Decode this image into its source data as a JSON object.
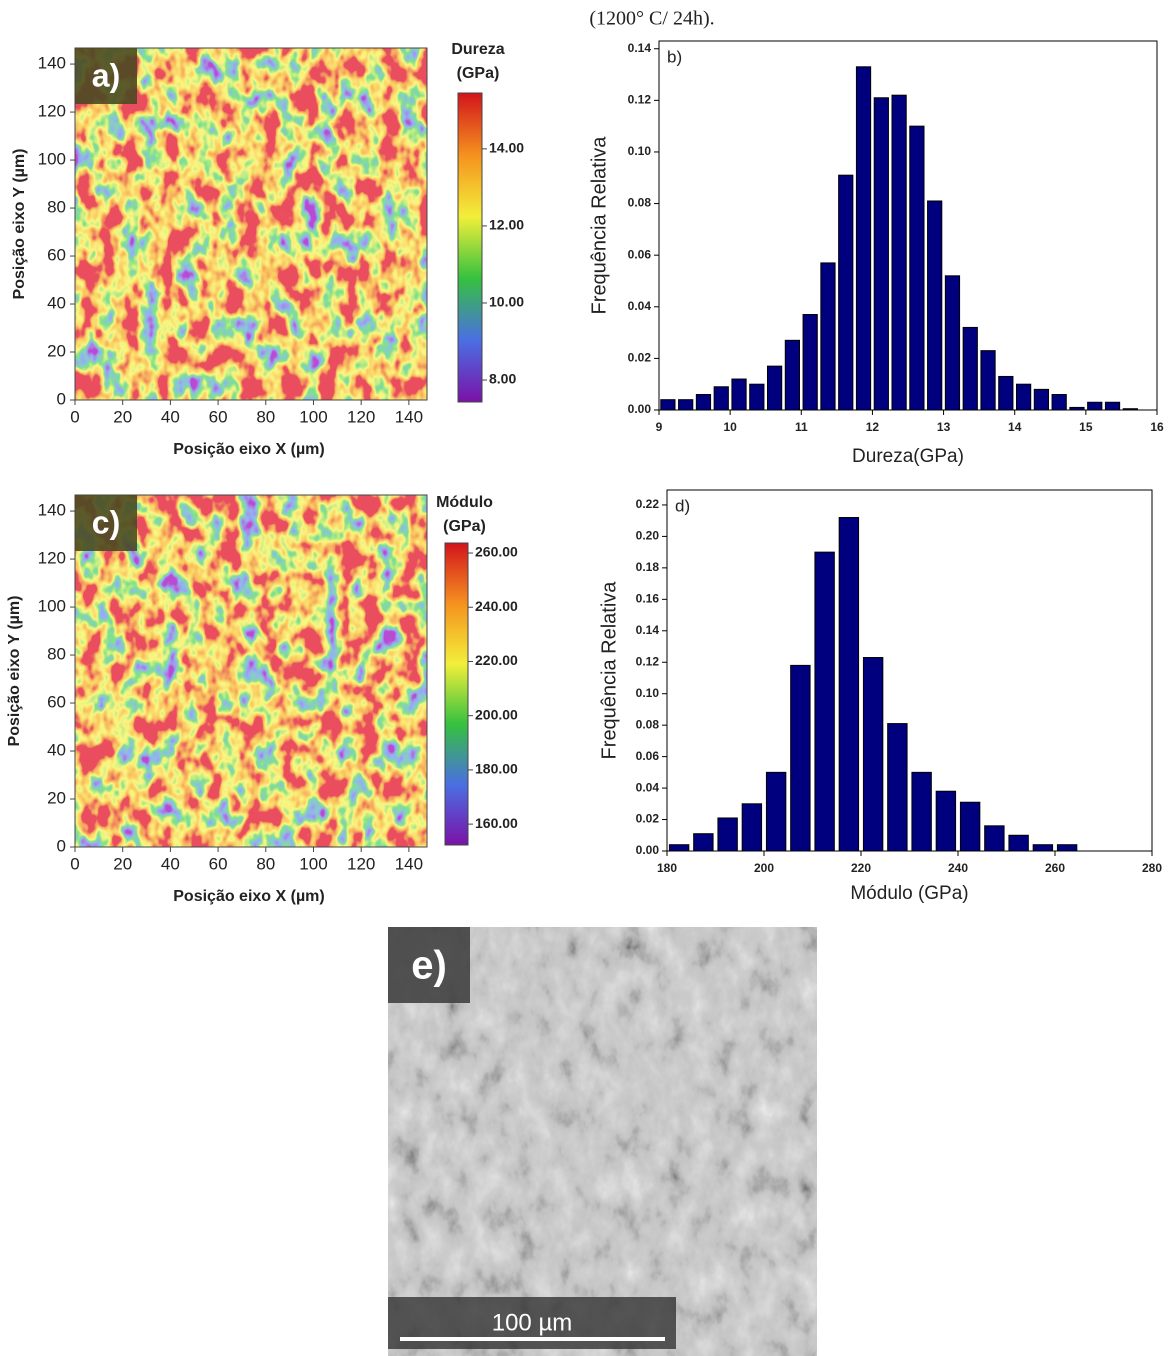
{
  "caption": "(1200° C/ 24h).",
  "chart_data": [
    {
      "type": "heatmap",
      "label": "a)",
      "xlabel": "Posição eixo X (µm)",
      "ylabel": "Posição eixo Y (µm)",
      "xlim": [
        0,
        147.6
      ],
      "ylim": [
        0,
        146.7
      ],
      "xticks": [
        0,
        20,
        40,
        60,
        80,
        100,
        120,
        140
      ],
      "yticks": [
        0,
        20,
        40,
        60,
        80,
        100,
        120,
        140
      ],
      "colorbar_title": [
        "Dureza",
        "(GPa)"
      ],
      "clim": [
        7.43,
        15.45
      ],
      "cticks": [
        {
          "value": 8,
          "label": "8.00"
        },
        {
          "value": 10,
          "label": "10.00"
        },
        {
          "value": 12,
          "label": "12.00"
        },
        {
          "value": 14,
          "label": "14.00"
        }
      ],
      "colormap": [
        "#7a12a8",
        "#4a6fe3",
        "#35c13f",
        "#f2ef3a",
        "#f5911e",
        "#d2141c"
      ]
    },
    {
      "type": "histogram",
      "label": "b)",
      "xlabel": "Dureza(GPa)",
      "ylabel": "Frequência Relativa",
      "color": "#00007f",
      "bins": [
        9,
        9.25,
        9.5,
        9.75,
        10,
        10.25,
        10.5,
        10.75,
        11,
        11.25,
        11.5,
        11.75,
        12,
        12.25,
        12.5,
        12.75,
        13,
        13.25,
        13.5,
        13.75,
        14,
        14.25,
        14.5,
        14.75,
        15,
        15.25,
        15.5,
        15.75
      ],
      "values": [
        0.004,
        0.004,
        0.006,
        0.009,
        0.012,
        0.01,
        0.017,
        0.027,
        0.037,
        0.057,
        0.091,
        0.133,
        0.121,
        0.122,
        0.11,
        0.081,
        0.052,
        0.032,
        0.023,
        0.013,
        0.01,
        0.008,
        0.006,
        0.001,
        0.003,
        0.003,
        0.0005
      ],
      "xlim": [
        9,
        16
      ],
      "ylim": [
        0,
        0.143
      ],
      "xticks": [
        9,
        10,
        11,
        12,
        13,
        14,
        15,
        16
      ],
      "yticks": [
        {
          "value": 0,
          "label": "0.00"
        },
        {
          "value": 0.02,
          "label": "0.02"
        },
        {
          "value": 0.04,
          "label": "0.04"
        },
        {
          "value": 0.06,
          "label": "0.06"
        },
        {
          "value": 0.08,
          "label": "0.08"
        },
        {
          "value": 0.1,
          "label": "0.10"
        },
        {
          "value": 0.12,
          "label": "0.12"
        },
        {
          "value": 0.14,
          "label": "0.14"
        }
      ]
    },
    {
      "type": "heatmap",
      "label": "c)",
      "xlabel": "Posição eixo X (µm)",
      "ylabel": "Posição eixo Y (µm)",
      "xlim": [
        0,
        147.6
      ],
      "ylim": [
        0,
        146.7
      ],
      "xticks": [
        0,
        20,
        40,
        60,
        80,
        100,
        120,
        140
      ],
      "yticks": [
        0,
        20,
        40,
        60,
        80,
        100,
        120,
        140
      ],
      "colorbar_title": [
        "Módulo",
        "(GPa)"
      ],
      "clim": [
        152.3,
        263.7
      ],
      "cticks": [
        {
          "value": 160,
          "label": "160.00"
        },
        {
          "value": 180,
          "label": "180.00"
        },
        {
          "value": 200,
          "label": "200.00"
        },
        {
          "value": 220,
          "label": "220.00"
        },
        {
          "value": 240,
          "label": "240.00"
        },
        {
          "value": 260,
          "label": "260.00"
        }
      ],
      "colormap": [
        "#7a12a8",
        "#4a6fe3",
        "#35c13f",
        "#f2ef3a",
        "#f5911e",
        "#d2141c"
      ]
    },
    {
      "type": "histogram",
      "label": "d)",
      "xlabel": "Módulo (GPa)",
      "ylabel": "Frequência Relativa",
      "color": "#00007f",
      "bins": [
        180,
        185,
        190,
        195,
        200,
        205,
        210,
        215,
        220,
        225,
        230,
        235,
        240,
        245,
        250,
        255,
        260,
        265
      ],
      "values": [
        0.004,
        0.011,
        0.021,
        0.03,
        0.05,
        0.118,
        0.19,
        0.212,
        0.123,
        0.081,
        0.05,
        0.038,
        0.031,
        0.016,
        0.01,
        0.004,
        0.004
      ],
      "xlim": [
        180,
        280
      ],
      "ylim": [
        0,
        0.2295
      ],
      "xticks": [
        180,
        200,
        220,
        240,
        260,
        280
      ],
      "yticks": [
        {
          "value": 0,
          "label": "0.00"
        },
        {
          "value": 0.02,
          "label": "0.02"
        },
        {
          "value": 0.04,
          "label": "0.04"
        },
        {
          "value": 0.06,
          "label": "0.06"
        },
        {
          "value": 0.08,
          "label": "0.08"
        },
        {
          "value": 0.1,
          "label": "0.10"
        },
        {
          "value": 0.12,
          "label": "0.12"
        },
        {
          "value": 0.14,
          "label": "0.14"
        },
        {
          "value": 0.16,
          "label": "0.16"
        },
        {
          "value": 0.18,
          "label": "0.18"
        },
        {
          "value": 0.2,
          "label": "0.20"
        },
        {
          "value": 0.22,
          "label": "0.22"
        }
      ]
    }
  ],
  "image": {
    "label": "e)",
    "scale_bar": "100 µm"
  }
}
